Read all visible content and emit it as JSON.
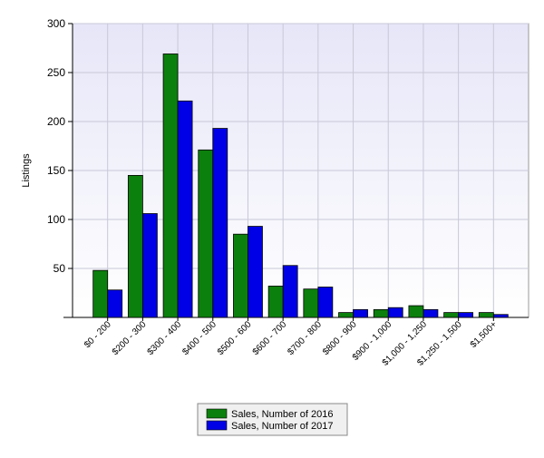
{
  "chart_data": {
    "type": "bar",
    "y_label": "Listings",
    "categories": [
      "$0 - 200",
      "$200 - 300",
      "$300 - 400",
      "$400 - 500",
      "$500 - 600",
      "$600 - 700",
      "$700 - 800",
      "$800 - 900",
      "$900 - 1,000",
      "$1,000 - 1,250",
      "$1,250 - 1,500",
      "$1,500+"
    ],
    "series": [
      {
        "name": "Sales, Number of 2016",
        "color": "#0c800c",
        "values": [
          48,
          145,
          269,
          171,
          85,
          32,
          29,
          5,
          8,
          12,
          5,
          5
        ]
      },
      {
        "name": "Sales, Number of 2017",
        "color": "#0000e6",
        "values": [
          28,
          106,
          221,
          193,
          93,
          53,
          31,
          8,
          10,
          8,
          5,
          3
        ]
      }
    ],
    "ylim": [
      0,
      300
    ],
    "yticks": [
      50,
      100,
      150,
      200,
      250,
      300
    ],
    "grid": true,
    "legend": "bottom"
  }
}
